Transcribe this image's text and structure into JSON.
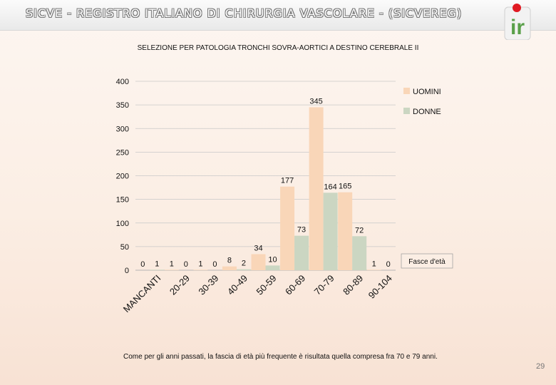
{
  "header": {
    "title": "SICVE - REGISTRO ITALIANO DI CHIRURGIA VASCOLARE - (SICVEREG)",
    "logo_letters": "ir"
  },
  "page_number": "29",
  "footnote": "Come per gli anni passati, la fascia di età più frequente è risultata quella compresa fra 70 e 79 anni.",
  "colors": {
    "uomini": "#f9d6b8",
    "donne": "#cbd6c2",
    "logo_green": "#5aa04a",
    "logo_red": "#e01a22"
  },
  "chart_data": {
    "type": "bar",
    "title": "SELEZIONE PER PATOLOGIA TRONCHI SOVRA-AORTICI A DESTINO CEREBRALE II",
    "categories": [
      "MANCANTI",
      "20-29",
      "30-39",
      "40-49",
      "50-59",
      "60-69",
      "70-79",
      "80-89",
      "90-104"
    ],
    "series": [
      {
        "name": "UOMINI",
        "values": [
          0,
          1,
          1,
          8,
          34,
          177,
          345,
          165,
          1
        ]
      },
      {
        "name": "DONNE",
        "values": [
          1,
          0,
          0,
          2,
          10,
          73,
          164,
          72,
          0
        ]
      }
    ],
    "ylim": [
      0,
      400
    ],
    "yticks": [
      0,
      50,
      100,
      150,
      200,
      250,
      300,
      350,
      400
    ],
    "xlabel": "Fasce d'età",
    "ylabel": "",
    "grid": true,
    "legend": "top-right"
  }
}
